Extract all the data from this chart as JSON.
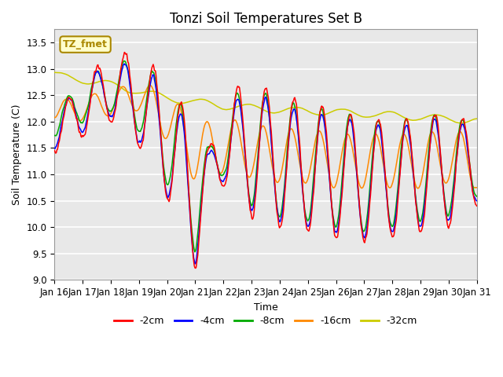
{
  "title": "Tonzi Soil Temperatures Set B",
  "xlabel": "Time",
  "ylabel": "Soil Temperature (C)",
  "ylim": [
    9.0,
    13.75
  ],
  "yticks": [
    9.0,
    9.5,
    10.0,
    10.5,
    11.0,
    11.5,
    12.0,
    12.5,
    13.0,
    13.5
  ],
  "plot_bg_color": "#e8e8e8",
  "colors": {
    "-2cm": "#ff0000",
    "-4cm": "#0000ff",
    "-8cm": "#00aa00",
    "-16cm": "#ff8800",
    "-32cm": "#cccc00"
  },
  "legend_label": "TZ_fmet",
  "legend_bg": "#ffffcc",
  "legend_border": "#aa8800",
  "xtick_labels": [
    "Jan 16",
    "Jan 17",
    "Jan 18",
    "Jan 19",
    "Jan 20",
    "Jan 21",
    "Jan 22",
    "Jan 23",
    "Jan 24",
    "Jan 25",
    "Jan 26",
    "Jan 27",
    "Jan 28",
    "Jan 29",
    "Jan 30",
    "Jan 31"
  ],
  "title_fontsize": 12,
  "label_fontsize": 9,
  "tick_fontsize": 8.5
}
